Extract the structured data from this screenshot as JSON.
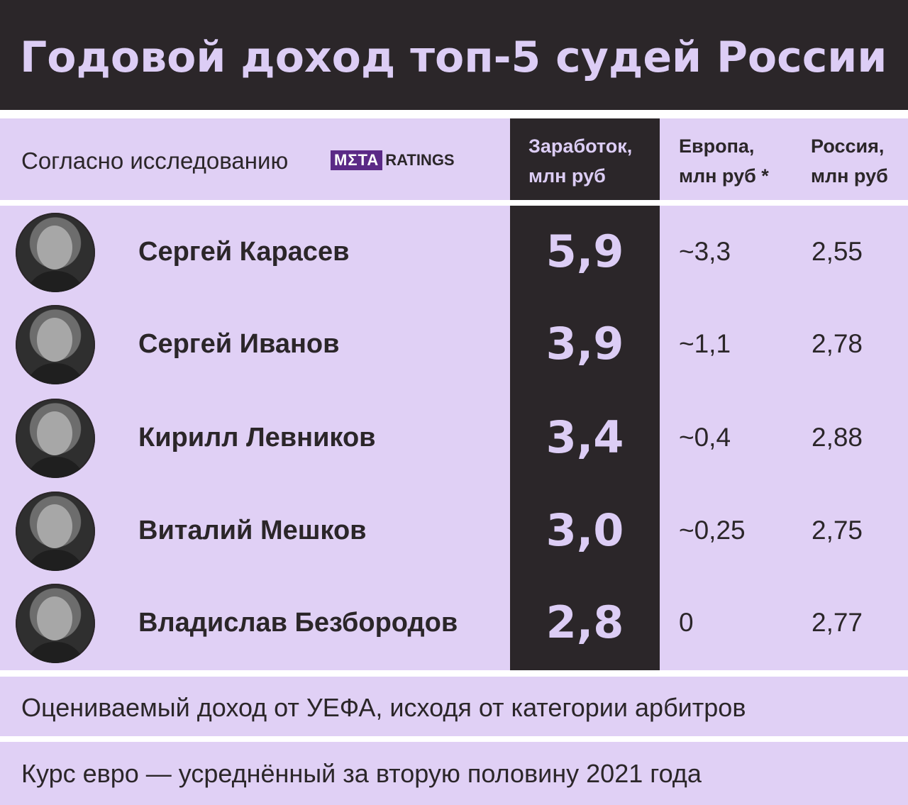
{
  "title": "Годовой доход топ-5 судей России",
  "subtitle": "Согласно исследованию",
  "logo": {
    "box_text": "MΣTA",
    "text": "RATINGS"
  },
  "columns": {
    "earnings": "Заработок,\nмлн руб",
    "europe": "Европа,\nмлн руб *",
    "russia": "Россия,\nмлн руб"
  },
  "rows": [
    {
      "name": "Сергей Карасев",
      "total": "5,9",
      "europe": "~3,3",
      "russia": "2,55"
    },
    {
      "name": "Сергей Иванов",
      "total": "3,9",
      "europe": "~1,1",
      "russia": "2,78"
    },
    {
      "name": "Кирилл Левников",
      "total": "3,4",
      "europe": "~0,4",
      "russia": "2,88"
    },
    {
      "name": "Виталий Мешков",
      "total": "3,0",
      "europe": "~0,25",
      "russia": "2,75"
    },
    {
      "name": "Владислав Безбородов",
      "total": "2,8",
      "europe": "0",
      "russia": "2,77"
    }
  ],
  "footnotes": [
    "Оцениваемый доход от УЕФА, исходя от категории арбитров",
    "Курс евро — усреднённый за вторую половину 2021 года"
  ],
  "colors": {
    "dark": "#2b2629",
    "lavender": "#e0d0f5",
    "light_text": "#dccdf5",
    "logo": "#5b2a86"
  },
  "chart_data": {
    "type": "table",
    "title": "Годовой доход топ-5 судей России",
    "columns": [
      "",
      "Заработок, млн руб",
      "Европа, млн руб *",
      "Россия, млн руб"
    ],
    "rows": [
      [
        "Сергей Карасев",
        "5,9",
        "~3,3",
        "2,55"
      ],
      [
        "Сергей Иванов",
        "3,9",
        "~1,1",
        "2,78"
      ],
      [
        "Кирилл Левников",
        "3,4",
        "~0,4",
        "2,88"
      ],
      [
        "Виталий Мешков",
        "3,0",
        "~0,25",
        "2,75"
      ],
      [
        "Владислав Безбородов",
        "2,8",
        "0",
        "2,77"
      ]
    ]
  }
}
